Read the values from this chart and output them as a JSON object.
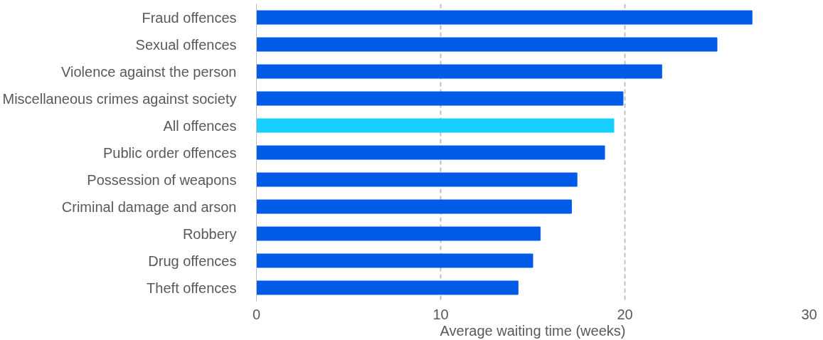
{
  "chart_data": {
    "type": "bar",
    "orientation": "horizontal",
    "xlabel": "Average waiting time (weeks)",
    "categories": [
      "Fraud offences",
      "Sexual offences",
      "Violence against the person",
      "Miscellaneous crimes against society",
      "All offences",
      "Public order offences",
      "Possession of weapons",
      "Criminal damage and arson",
      "Robbery",
      "Drug offences",
      "Theft offences"
    ],
    "values": [
      26.9,
      25.0,
      22.0,
      19.9,
      19.4,
      18.9,
      17.4,
      17.1,
      15.4,
      15.0,
      14.2
    ],
    "colors": [
      "#005ce6",
      "#005ce6",
      "#005ce6",
      "#005ce6",
      "#17cfff",
      "#005ce6",
      "#005ce6",
      "#005ce6",
      "#005ce6",
      "#005ce6",
      "#005ce6"
    ],
    "xlim": [
      0,
      30
    ],
    "xticks": [
      0,
      10,
      20,
      30
    ],
    "grid": "x"
  }
}
